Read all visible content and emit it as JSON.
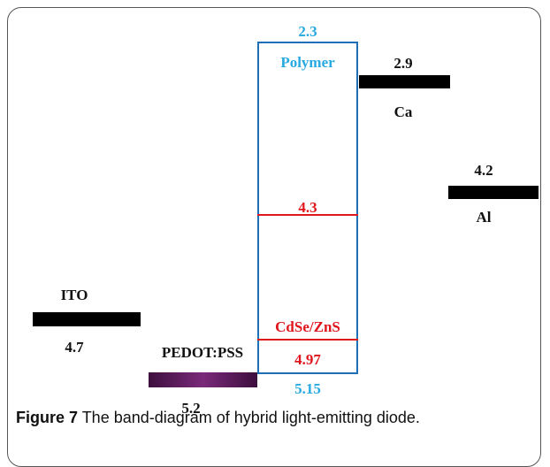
{
  "diagram": {
    "colors": {
      "polymer_blue": "#1f6fb8",
      "polymer_label": "#27a9e1",
      "qd_red": "#e0161d",
      "electrode_black": "#000000",
      "pedot_purple": "#5c1d5c",
      "label_black": "#111111"
    },
    "polymer": {
      "label": "Polymer",
      "top_value": "2.3",
      "bottom_value": "5.15"
    },
    "quantum_dot": {
      "label": "CdSe/ZnS",
      "upper_value": "4.3",
      "lower_value": "4.97"
    },
    "ito": {
      "label": "ITO",
      "value": "4.7"
    },
    "pedot": {
      "label": "PEDOT:PSS",
      "value": "5.2"
    },
    "ca": {
      "label": "Ca",
      "value": "2.9"
    },
    "al": {
      "label": "Al",
      "value": "4.2"
    }
  },
  "caption": {
    "figure_label": "Figure 7",
    "text": " The band-diagram of hybrid light-emitting diode."
  }
}
